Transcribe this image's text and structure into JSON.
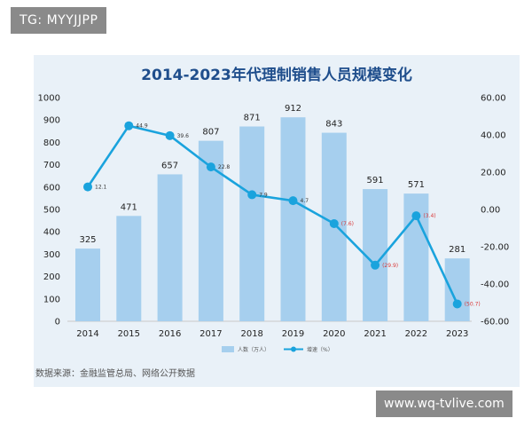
{
  "watermarks": {
    "top_left": "TG: MYYJJPP",
    "bottom_right": "www.wq-tvlive.com"
  },
  "source_note": "数据来源：金融监管总局、网络公开数据",
  "colors": {
    "bar": "#a6cfee",
    "line": "#1aa3dd",
    "panel": "#e9f1f8",
    "title": "#1f4e8c",
    "negative": "#d93a3a"
  },
  "chart_data": {
    "type": "bar",
    "title": "2014-2023年代理制销售人员规模变化",
    "categories": [
      "2014",
      "2015",
      "2016",
      "2017",
      "2018",
      "2019",
      "2020",
      "2021",
      "2022",
      "2023"
    ],
    "series": [
      {
        "name": "人数（万人）",
        "type": "bar",
        "axis": "left",
        "values": [
          325,
          471,
          657,
          807,
          871,
          912,
          843,
          591,
          571,
          281
        ],
        "labels": [
          "325",
          "471",
          "657",
          "807",
          "871",
          "912",
          "843",
          "591",
          "571",
          "281"
        ]
      },
      {
        "name": "增速（%）",
        "type": "line",
        "axis": "right",
        "values": [
          12.1,
          44.9,
          39.6,
          22.8,
          7.9,
          4.7,
          -7.6,
          -29.9,
          -3.4,
          -50.7
        ],
        "labels": [
          "12.1",
          "44.9",
          "39.6",
          "22.8",
          "7.9",
          "4.7",
          "(7.6)",
          "(29.9)",
          "(3.4)",
          "(50.7)"
        ]
      }
    ],
    "y_left": {
      "ticks": [
        "0",
        "100",
        "200",
        "300",
        "400",
        "500",
        "600",
        "700",
        "800",
        "900",
        "1000"
      ],
      "range": [
        0,
        1000
      ]
    },
    "y_right": {
      "ticks": [
        "60.00",
        "40.00",
        "20.00",
        "0.00",
        "-20.00",
        "-40.00",
        "-60.00"
      ],
      "range": [
        -60,
        60
      ]
    },
    "grid": false,
    "legend_position": "bottom"
  }
}
